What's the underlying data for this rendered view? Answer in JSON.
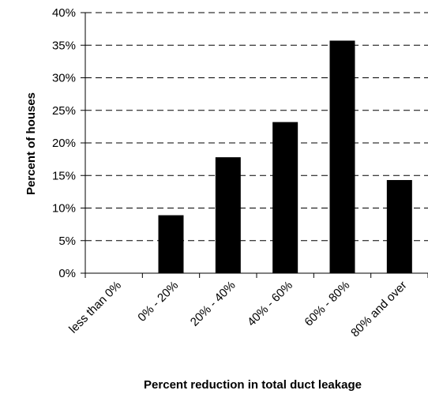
{
  "chart_data": {
    "type": "bar",
    "title": "",
    "xlabel": "Percent reduction in total duct leakage",
    "ylabel": "Percent of houses",
    "categories": [
      "less than 0%",
      "0% - 20%",
      "20% - 40%",
      "40% - 60%",
      "60% - 80%",
      "80% and over"
    ],
    "values": [
      0,
      8.9,
      17.8,
      23.2,
      35.7,
      14.3
    ],
    "ylim": [
      0,
      40
    ],
    "yticks": [
      0,
      5,
      10,
      15,
      20,
      25,
      30,
      35,
      40
    ],
    "ytick_labels": [
      "0%",
      "5%",
      "10%",
      "15%",
      "20%",
      "25%",
      "30%",
      "35%",
      "40%"
    ],
    "grid": "dashed horizontal",
    "legend": "none",
    "bar_color": "#000000"
  }
}
